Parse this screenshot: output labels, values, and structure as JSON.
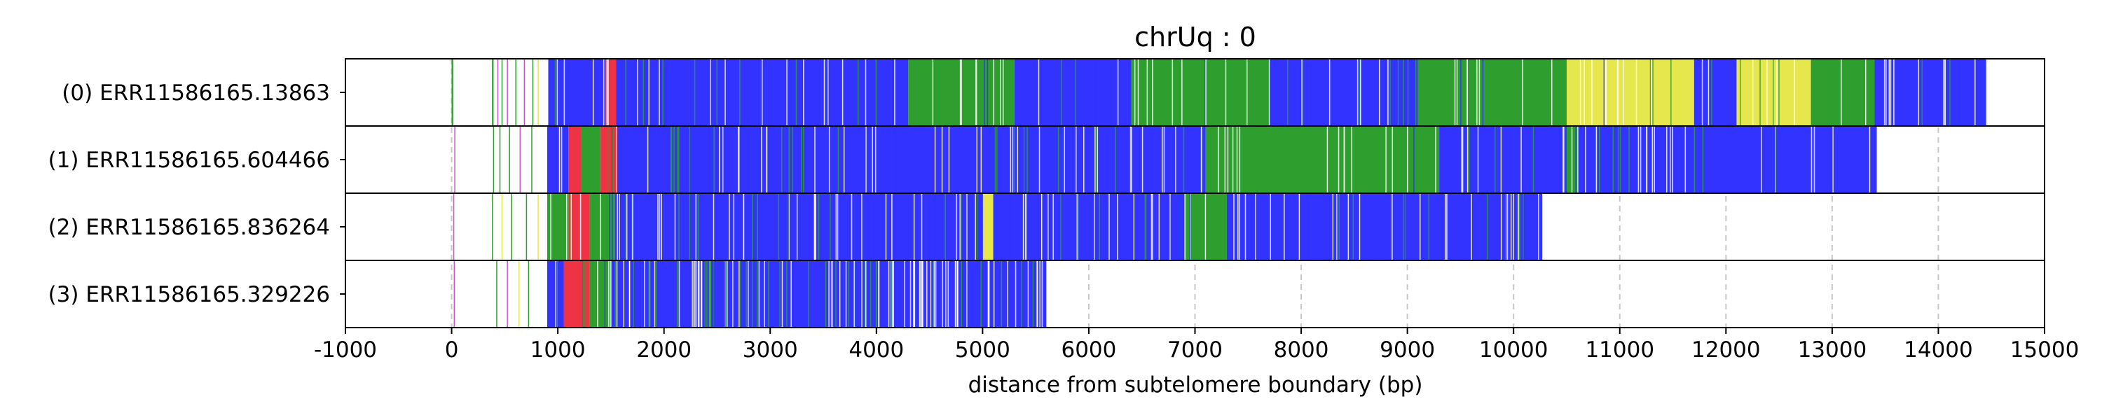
{
  "chart_data": {
    "type": "heatmap",
    "title": "chrUq : 0",
    "xlabel": "distance from subtelomere boundary (bp)",
    "ylabel": "",
    "xlim": [
      -1000,
      15000
    ],
    "x_ticks": [
      -1000,
      0,
      1000,
      2000,
      3000,
      4000,
      5000,
      6000,
      7000,
      8000,
      9000,
      10000,
      11000,
      12000,
      13000,
      14000,
      15000
    ],
    "grid": "vertical dashed",
    "legend": "none",
    "colors": {
      "blue": "#3333ff",
      "green": "#2e9e2e",
      "yellow": "#e6e64d",
      "red": "#ee3344",
      "magenta": "#cc55cc",
      "grid": "#c8c8c8"
    },
    "reads": [
      {
        "label": "(0) ERR11586165.13863",
        "x_end": 14450,
        "segments": [
          {
            "start": 0,
            "end": 15,
            "color": "green"
          },
          {
            "start": 380,
            "end": 395,
            "color": "green"
          },
          {
            "start": 430,
            "end": 440,
            "color": "magenta"
          },
          {
            "start": 470,
            "end": 480,
            "color": "green"
          },
          {
            "start": 520,
            "end": 530,
            "color": "magenta"
          },
          {
            "start": 600,
            "end": 610,
            "color": "green"
          },
          {
            "start": 680,
            "end": 690,
            "color": "magenta"
          },
          {
            "start": 760,
            "end": 770,
            "color": "green"
          },
          {
            "start": 810,
            "end": 820,
            "color": "yellow"
          },
          {
            "start": 910,
            "end": 1450,
            "color": "blue"
          },
          {
            "start": 1450,
            "end": 1550,
            "color": "red"
          },
          {
            "start": 1550,
            "end": 4300,
            "color": "blue"
          },
          {
            "start": 4300,
            "end": 5300,
            "color": "green"
          },
          {
            "start": 5300,
            "end": 6400,
            "color": "blue"
          },
          {
            "start": 6400,
            "end": 7700,
            "color": "green"
          },
          {
            "start": 7700,
            "end": 9100,
            "color": "blue"
          },
          {
            "start": 9100,
            "end": 10500,
            "color": "green"
          },
          {
            "start": 10500,
            "end": 11700,
            "color": "yellow"
          },
          {
            "start": 11700,
            "end": 12100,
            "color": "blue"
          },
          {
            "start": 12100,
            "end": 12800,
            "color": "yellow"
          },
          {
            "start": 12800,
            "end": 13400,
            "color": "green"
          },
          {
            "start": 13400,
            "end": 14450,
            "color": "blue"
          }
        ]
      },
      {
        "label": "(1) ERR11586165.604466",
        "x_end": 13420,
        "segments": [
          {
            "start": 25,
            "end": 35,
            "color": "magenta"
          },
          {
            "start": 390,
            "end": 400,
            "color": "green"
          },
          {
            "start": 450,
            "end": 460,
            "color": "green"
          },
          {
            "start": 540,
            "end": 550,
            "color": "green"
          },
          {
            "start": 640,
            "end": 650,
            "color": "magenta"
          },
          {
            "start": 750,
            "end": 760,
            "color": "green"
          },
          {
            "start": 900,
            "end": 1100,
            "color": "blue"
          },
          {
            "start": 1100,
            "end": 1220,
            "color": "red"
          },
          {
            "start": 1220,
            "end": 1400,
            "color": "green"
          },
          {
            "start": 1400,
            "end": 1560,
            "color": "red"
          },
          {
            "start": 1560,
            "end": 7100,
            "color": "blue"
          },
          {
            "start": 7100,
            "end": 9300,
            "color": "green"
          },
          {
            "start": 9300,
            "end": 10500,
            "color": "blue"
          },
          {
            "start": 10500,
            "end": 10600,
            "color": "green"
          },
          {
            "start": 10600,
            "end": 13420,
            "color": "blue"
          }
        ]
      },
      {
        "label": "(2) ERR11586165.836264",
        "x_end": 10270,
        "segments": [
          {
            "start": 15,
            "end": 25,
            "color": "magenta"
          },
          {
            "start": 380,
            "end": 390,
            "color": "green"
          },
          {
            "start": 470,
            "end": 480,
            "color": "yellow"
          },
          {
            "start": 560,
            "end": 570,
            "color": "green"
          },
          {
            "start": 700,
            "end": 710,
            "color": "green"
          },
          {
            "start": 810,
            "end": 820,
            "color": "yellow"
          },
          {
            "start": 900,
            "end": 1100,
            "color": "green"
          },
          {
            "start": 1100,
            "end": 1300,
            "color": "red"
          },
          {
            "start": 1300,
            "end": 1540,
            "color": "green"
          },
          {
            "start": 1540,
            "end": 5000,
            "color": "blue"
          },
          {
            "start": 5000,
            "end": 5100,
            "color": "yellow"
          },
          {
            "start": 5100,
            "end": 6900,
            "color": "blue"
          },
          {
            "start": 6900,
            "end": 7300,
            "color": "green"
          },
          {
            "start": 7300,
            "end": 10270,
            "color": "blue"
          }
        ]
      },
      {
        "label": "(3) ERR11586165.329226",
        "x_end": 5600,
        "segments": [
          {
            "start": 20,
            "end": 30,
            "color": "magenta"
          },
          {
            "start": 420,
            "end": 430,
            "color": "green"
          },
          {
            "start": 520,
            "end": 530,
            "color": "magenta"
          },
          {
            "start": 630,
            "end": 640,
            "color": "yellow"
          },
          {
            "start": 720,
            "end": 730,
            "color": "green"
          },
          {
            "start": 900,
            "end": 1050,
            "color": "blue"
          },
          {
            "start": 1050,
            "end": 1300,
            "color": "red"
          },
          {
            "start": 1300,
            "end": 1500,
            "color": "green"
          },
          {
            "start": 1500,
            "end": 5600,
            "color": "blue"
          }
        ]
      }
    ]
  }
}
